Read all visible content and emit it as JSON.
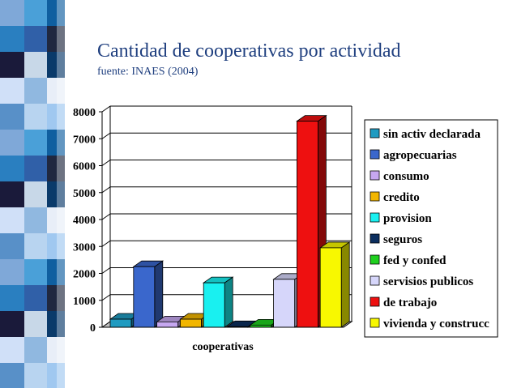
{
  "slide": {
    "title": "Cantidad de cooperativas por actividad",
    "subtitle": "fuente: INAES (2004)"
  },
  "chart_data": {
    "type": "bar",
    "title": "Cantidad de cooperativas por actividad",
    "subtitle": "fuente: INAES (2004)",
    "categories": [
      "cooperativas"
    ],
    "xlabel": "cooperativas",
    "ylabel": "",
    "ylim": [
      0,
      8000
    ],
    "yticks": [
      "0",
      "1000",
      "2000",
      "3000",
      "4000",
      "5000",
      "6000",
      "7000",
      "8000"
    ],
    "grid": true,
    "legend_position": "right",
    "series": [
      {
        "name": "sin activ declarada",
        "values": [
          300
        ],
        "color": "#1f9bc1"
      },
      {
        "name": "agropecuarias",
        "values": [
          2250
        ],
        "color": "#3a67cc"
      },
      {
        "name": "consumo",
        "values": [
          200
        ],
        "color": "#c6a7f0"
      },
      {
        "name": "credito",
        "values": [
          300
        ],
        "color": "#f2b600"
      },
      {
        "name": "provision",
        "values": [
          1650
        ],
        "color": "#19f0f0"
      },
      {
        "name": "seguros",
        "values": [
          20
        ],
        "color": "#0c2f5f"
      },
      {
        "name": "fed y confed",
        "values": [
          80
        ],
        "color": "#1fd01f"
      },
      {
        "name": "servisios publicos",
        "values": [
          1780
        ],
        "color": "#d6d6fa"
      },
      {
        "name": "de trabajo",
        "values": [
          7650
        ],
        "color": "#ee1010"
      },
      {
        "name": "vivienda y construcc",
        "values": [
          2950
        ],
        "color": "#f8f800"
      }
    ]
  }
}
